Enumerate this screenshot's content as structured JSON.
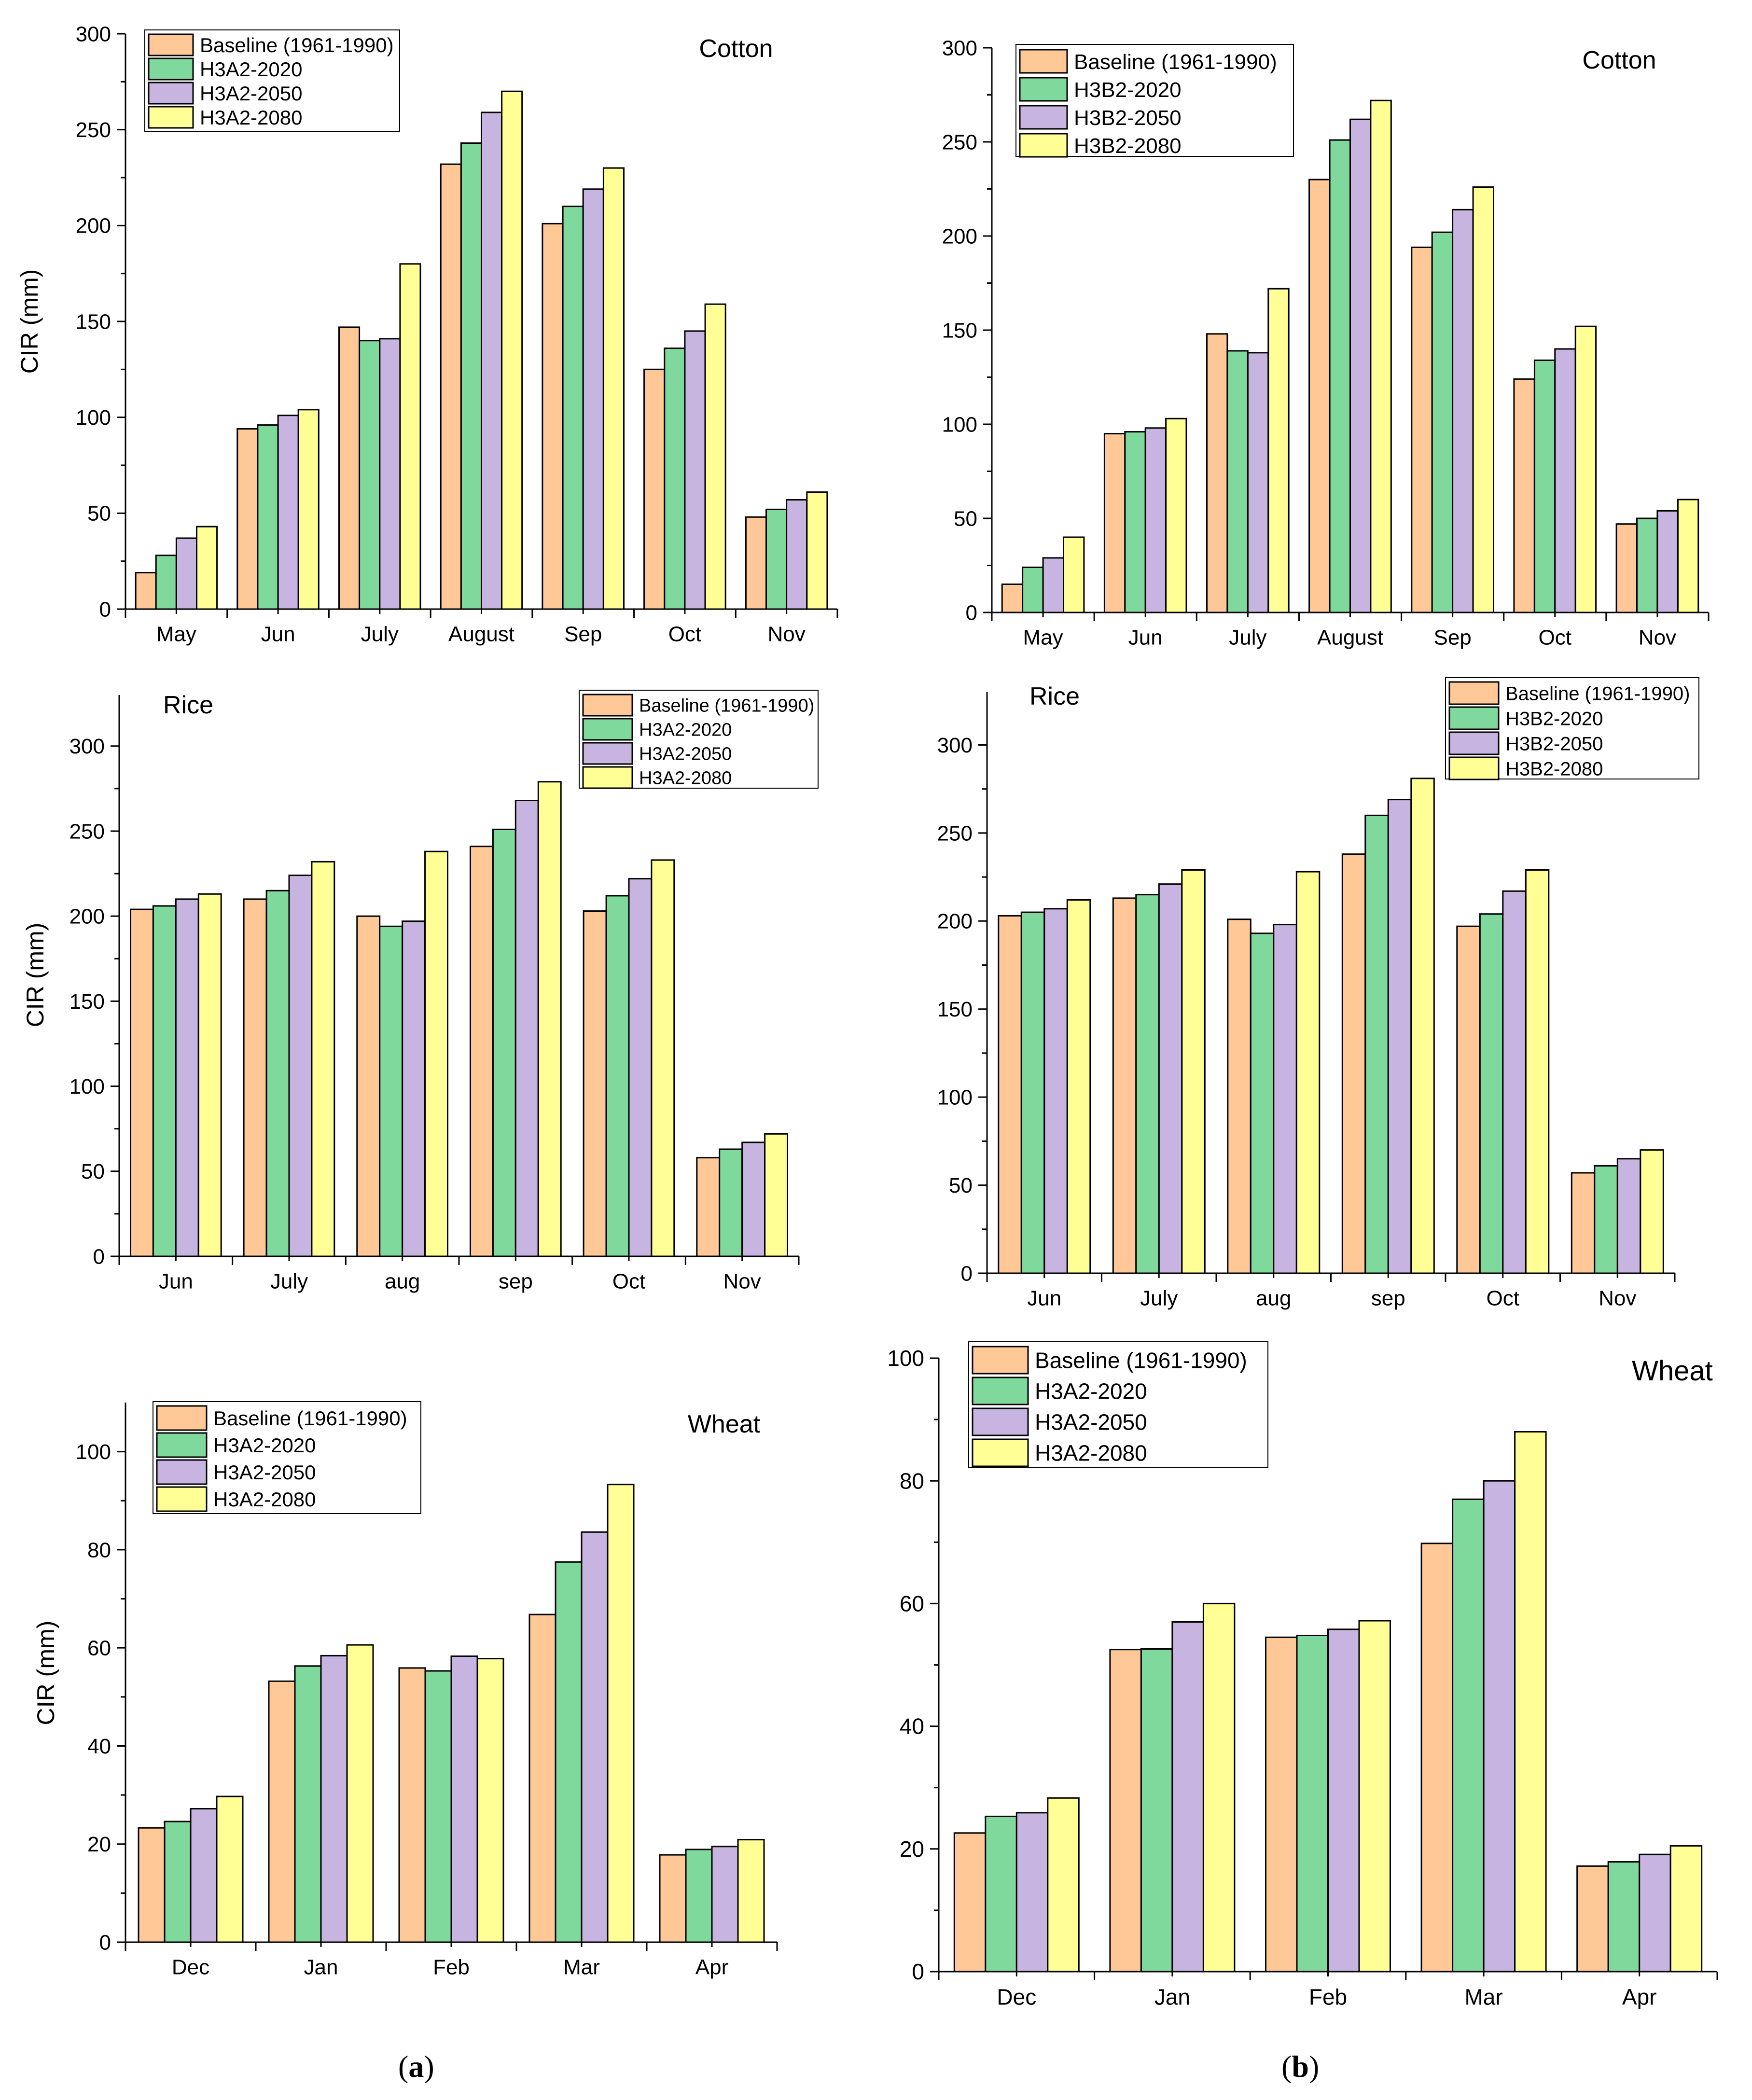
{
  "figure": {
    "panel_labels": [
      "a",
      "b"
    ],
    "series_colors": [
      "#FFC896",
      "#7FD99C",
      "#C8B4E0",
      "#FFFF96"
    ]
  },
  "chart_data": [
    {
      "id": "a-cotton",
      "type": "bar",
      "title": "Cotton",
      "ylabel": "CIR (mm)",
      "xlabel": "",
      "categories": [
        "May",
        "Jun",
        "July",
        "August",
        "Sep",
        "Oct",
        "Nov"
      ],
      "ylim": [
        0,
        300
      ],
      "yticks": [
        0,
        50,
        100,
        150,
        200,
        250,
        300
      ],
      "legend": "top-left",
      "series": [
        {
          "name": "Baseline (1961-1990)",
          "values": [
            19,
            94,
            147,
            232,
            201,
            125,
            48
          ]
        },
        {
          "name": "H3A2-2020",
          "values": [
            28,
            96,
            140,
            243,
            210,
            136,
            52
          ]
        },
        {
          "name": "H3A2-2050",
          "values": [
            37,
            101,
            141,
            259,
            219,
            145,
            57
          ]
        },
        {
          "name": "H3A2-2080",
          "values": [
            43,
            104,
            180,
            270,
            230,
            159,
            61
          ]
        }
      ]
    },
    {
      "id": "b-cotton",
      "type": "bar",
      "title": "Cotton",
      "ylabel": "",
      "xlabel": "",
      "categories": [
        "May",
        "Jun",
        "July",
        "August",
        "Sep",
        "Oct",
        "Nov"
      ],
      "ylim": [
        0,
        300
      ],
      "yticks": [
        0,
        50,
        100,
        150,
        200,
        250,
        300
      ],
      "legend": "top-left",
      "series": [
        {
          "name": "Baseline (1961-1990)",
          "values": [
            15,
            95,
            148,
            230,
            194,
            124,
            47
          ]
        },
        {
          "name": "H3B2-2020",
          "values": [
            24,
            96,
            139,
            251,
            202,
            134,
            50
          ]
        },
        {
          "name": "H3B2-2050",
          "values": [
            29,
            98,
            138,
            262,
            214,
            140,
            54
          ]
        },
        {
          "name": "H3B2-2080",
          "values": [
            40,
            103,
            172,
            272,
            226,
            152,
            60
          ]
        }
      ]
    },
    {
      "id": "a-rice",
      "type": "bar",
      "title": "Rice",
      "ylabel": "CIR (mm)",
      "xlabel": "",
      "categories": [
        "Jun",
        "July",
        "aug",
        "sep",
        "Oct",
        "Nov"
      ],
      "ylim": [
        0,
        330
      ],
      "yticks": [
        0,
        50,
        100,
        150,
        200,
        250,
        300
      ],
      "legend": "top-right",
      "series": [
        {
          "name": "Baseline (1961-1990)",
          "values": [
            204,
            210,
            200,
            241,
            203,
            58
          ]
        },
        {
          "name": "H3A2-2020",
          "values": [
            206,
            215,
            194,
            251,
            212,
            63
          ]
        },
        {
          "name": "H3A2-2050",
          "values": [
            210,
            224,
            197,
            268,
            222,
            67
          ]
        },
        {
          "name": "H3A2-2080",
          "values": [
            213,
            232,
            238,
            279,
            233,
            72
          ]
        }
      ]
    },
    {
      "id": "b-rice",
      "type": "bar",
      "title": "Rice",
      "ylabel": "",
      "xlabel": "",
      "categories": [
        "Jun",
        "July",
        "aug",
        "sep",
        "Oct",
        "Nov"
      ],
      "ylim": [
        0,
        330
      ],
      "yticks": [
        0,
        50,
        100,
        150,
        200,
        250,
        300
      ],
      "legend": "top-right",
      "series": [
        {
          "name": "Baseline (1961-1990)",
          "values": [
            203,
            213,
            201,
            238,
            197,
            57
          ]
        },
        {
          "name": "H3B2-2020",
          "values": [
            205,
            215,
            193,
            260,
            204,
            61
          ]
        },
        {
          "name": "H3B2-2050",
          "values": [
            207,
            221,
            198,
            269,
            217,
            65
          ]
        },
        {
          "name": "H3B2-2080",
          "values": [
            212,
            229,
            228,
            281,
            229,
            70
          ]
        }
      ]
    },
    {
      "id": "a-wheat",
      "type": "bar",
      "title": "Wheat",
      "ylabel": "CIR (mm)",
      "xlabel": "",
      "categories": [
        "Dec",
        "Jan",
        "Feb",
        "Mar",
        "Apr"
      ],
      "ylim": [
        0,
        110
      ],
      "yticks": [
        0,
        20,
        40,
        60,
        80,
        100
      ],
      "legend": "top-left",
      "series": [
        {
          "name": "Baseline (1961-1990)",
          "values": [
            23.3,
            53.2,
            55.9,
            66.8,
            17.8
          ]
        },
        {
          "name": "H3A2-2020",
          "values": [
            24.6,
            56.3,
            55.3,
            77.5,
            18.9
          ]
        },
        {
          "name": "H3A2-2050",
          "values": [
            27.2,
            58.4,
            58.3,
            83.6,
            19.5
          ]
        },
        {
          "name": "H3A2-2080",
          "values": [
            29.7,
            60.6,
            57.8,
            93.3,
            20.9
          ]
        }
      ]
    },
    {
      "id": "b-wheat",
      "type": "bar",
      "title": "Wheat",
      "ylabel": "",
      "xlabel": "",
      "categories": [
        "Dec",
        "Jan",
        "Feb",
        "Mar",
        "Apr"
      ],
      "ylim": [
        0,
        100
      ],
      "yticks": [
        0,
        20,
        40,
        60,
        80,
        100
      ],
      "legend": "top-left",
      "series": [
        {
          "name": "Baseline (1961-1990)",
          "values": [
            22.6,
            52.5,
            54.5,
            69.8,
            17.2
          ]
        },
        {
          "name": "H3A2-2020",
          "values": [
            25.3,
            52.6,
            54.8,
            77.0,
            17.9
          ]
        },
        {
          "name": "H3A2-2050",
          "values": [
            25.9,
            57.0,
            55.8,
            80.0,
            19.1
          ]
        },
        {
          "name": "H3A2-2080",
          "values": [
            28.3,
            60.0,
            57.2,
            88.0,
            20.5
          ]
        }
      ]
    }
  ]
}
